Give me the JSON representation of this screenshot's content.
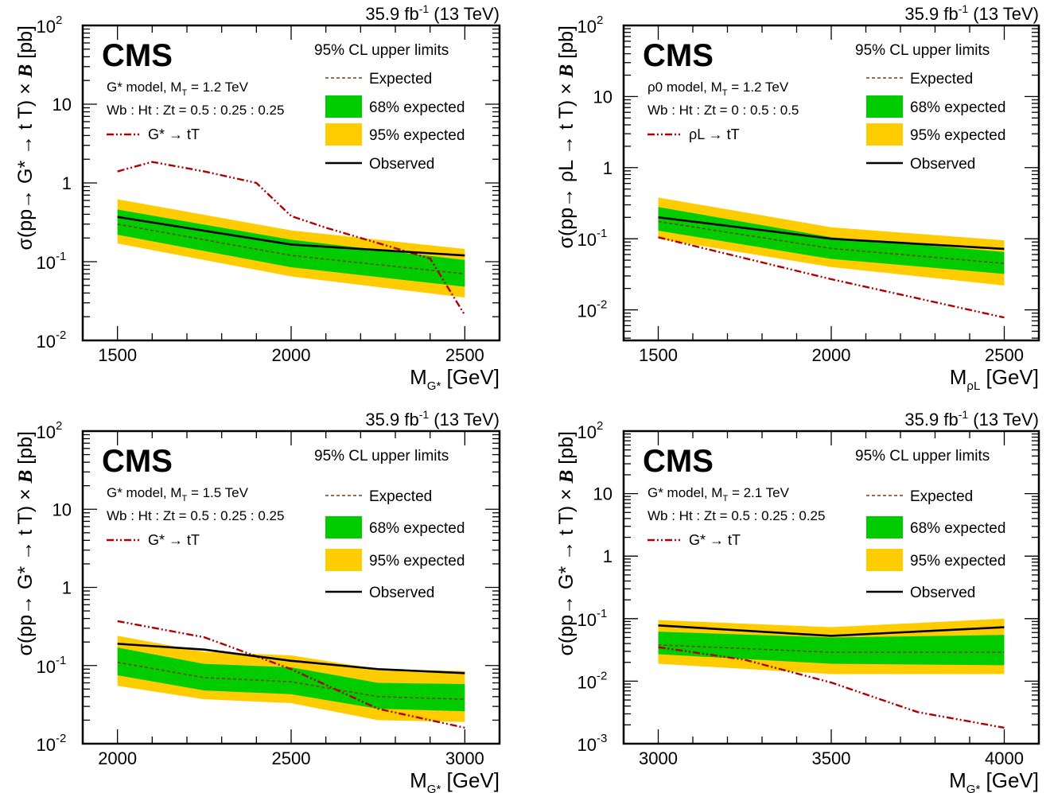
{
  "chart_data": [
    {
      "type": "line",
      "lumi": "35.9 fb",
      "lumi_sup": "-1",
      "energy": " (13 TeV)",
      "experiment": "CMS",
      "legend_title": "95% CL upper limits",
      "legend_entries": [
        "Expected",
        "68% expected",
        "95% expected",
        "Observed"
      ],
      "model_label": "G* model, M",
      "model_sub": "T",
      "model_mass": " = 1.2 TeV",
      "br_label": "Wb : Ht : Zt = 0.5 : 0.25 : 0.25",
      "theory_label": "G* → tT",
      "ylabel": "σ(pp→ G* → t T) ×",
      "ylabel_b": "B",
      "ylabel_unit": "[pb]",
      "xlabel": "M",
      "xlabel_sub": "G*",
      "xlabel_unit": "[GeV]",
      "xlim": [
        1400,
        2600
      ],
      "ylim": [
        0.01,
        100
      ],
      "yscale": "log",
      "xticks": [
        1500,
        2000,
        2500
      ],
      "yticks": [
        "10^-2",
        "10^-1",
        "1",
        "10",
        "10^2"
      ],
      "x": [
        1500,
        2000,
        2500
      ],
      "observed": [
        0.37,
        0.165,
        0.12
      ],
      "expected": [
        0.3,
        0.12,
        0.07
      ],
      "band68_low": [
        0.22,
        0.085,
        0.048
      ],
      "band68_high": [
        0.46,
        0.19,
        0.105
      ],
      "band95_low": [
        0.17,
        0.065,
        0.035
      ],
      "band95_high": [
        0.62,
        0.25,
        0.145
      ],
      "theory_x": [
        1500,
        1600,
        1750,
        1900,
        2000,
        2100,
        2400,
        2500
      ],
      "theory_y": [
        1.4,
        1.85,
        1.4,
        1.0,
        0.38,
        0.27,
        0.11,
        0.021
      ]
    },
    {
      "type": "line",
      "lumi": "35.9 fb",
      "lumi_sup": "-1",
      "energy": " (13 TeV)",
      "experiment": "CMS",
      "legend_title": "95% CL upper limits",
      "legend_entries": [
        "Expected",
        "68% expected",
        "95% expected",
        "Observed"
      ],
      "model_label": "ρ0 model, M",
      "model_sub": "T",
      "model_mass": " = 1.2 TeV",
      "br_label": "Wb : Ht : Zt = 0 : 0.5 : 0.5",
      "theory_label": "ρL → tT",
      "ylabel": "σ(pp→ ρL → t T) ×",
      "ylabel_b": "B",
      "ylabel_unit": "[pb]",
      "xlabel": "M",
      "xlabel_sub": "ρL",
      "xlabel_unit": "[GeV]",
      "xlim": [
        1400,
        2600
      ],
      "ylim": [
        0.005,
        100
      ],
      "yscale": "log",
      "xticks": [
        1500,
        2000,
        2500
      ],
      "yticks": [
        "10^-2",
        "10^-1",
        "1",
        "10",
        "10^2"
      ],
      "x": [
        1500,
        2000,
        2500
      ],
      "observed": [
        0.2,
        0.1,
        0.072
      ],
      "expected": [
        0.175,
        0.073,
        0.045
      ],
      "band68_low": [
        0.13,
        0.052,
        0.032
      ],
      "band68_high": [
        0.28,
        0.105,
        0.065
      ],
      "band95_low": [
        0.1,
        0.04,
        0.022
      ],
      "band95_high": [
        0.38,
        0.145,
        0.095
      ],
      "theory_x": [
        1500,
        2000,
        2500
      ],
      "theory_y": [
        0.105,
        0.027,
        0.0078
      ]
    },
    {
      "type": "line",
      "lumi": "35.9 fb",
      "lumi_sup": "-1",
      "energy": " (13 TeV)",
      "experiment": "CMS",
      "legend_title": "95% CL upper limits",
      "legend_entries": [
        "Expected",
        "68% expected",
        "95% expected",
        "Observed"
      ],
      "model_label": "G* model, M",
      "model_sub": "T",
      "model_mass": " = 1.5 TeV",
      "br_label": "Wb : Ht : Zt = 0.5 : 0.25 : 0.25",
      "theory_label": "G* → tT",
      "ylabel": "σ(pp→ G* → t T) ×",
      "ylabel_b": "B",
      "ylabel_unit": "[pb]",
      "xlabel": "M",
      "xlabel_sub": "G*",
      "xlabel_unit": "[GeV]",
      "xlim": [
        1900,
        3100
      ],
      "ylim": [
        0.01,
        100
      ],
      "yscale": "log",
      "xticks": [
        2000,
        2500,
        3000
      ],
      "yticks": [
        "10^-2",
        "10^-1",
        "1",
        "10",
        "10^2"
      ],
      "x": [
        2000,
        2250,
        2500,
        2750,
        3000
      ],
      "observed": [
        0.19,
        0.16,
        0.115,
        0.09,
        0.08
      ],
      "expected": [
        0.11,
        0.07,
        0.062,
        0.04,
        0.037
      ],
      "band68_low": [
        0.075,
        0.048,
        0.043,
        0.028,
        0.026
      ],
      "band68_high": [
        0.17,
        0.105,
        0.095,
        0.06,
        0.058
      ],
      "band95_low": [
        0.055,
        0.037,
        0.033,
        0.02,
        0.019
      ],
      "band95_high": [
        0.24,
        0.15,
        0.135,
        0.09,
        0.085
      ],
      "theory_x": [
        2000,
        2250,
        2500,
        2750,
        3000
      ],
      "theory_y": [
        0.37,
        0.23,
        0.09,
        0.028,
        0.016
      ]
    },
    {
      "type": "line",
      "lumi": "35.9 fb",
      "lumi_sup": "-1",
      "energy": " (13 TeV)",
      "experiment": "CMS",
      "legend_title": "95% CL upper limits",
      "legend_entries": [
        "Expected",
        "68% expected",
        "95% expected",
        "Observed"
      ],
      "model_label": "G* model, M",
      "model_sub": "T",
      "model_mass": " = 2.1 TeV",
      "br_label": "Wb : Ht : Zt = 0.5 : 0.25 : 0.25",
      "theory_label": "G* → tT",
      "ylabel": "σ(pp→ G* → t T) ×",
      "ylabel_b": "B",
      "ylabel_unit": "[pb]",
      "xlabel": "M",
      "xlabel_sub": "G*",
      "xlabel_unit": "[GeV]",
      "xlim": [
        2900,
        4100
      ],
      "ylim": [
        0.001,
        100
      ],
      "yscale": "log",
      "xticks": [
        3000,
        3500,
        4000
      ],
      "yticks": [
        "10^-3",
        "10^-2",
        "10^-1",
        "1",
        "10",
        "10^2"
      ],
      "x": [
        3000,
        3500,
        4000
      ],
      "observed": [
        0.078,
        0.053,
        0.073
      ],
      "expected": [
        0.038,
        0.029,
        0.029
      ],
      "band68_low": [
        0.027,
        0.019,
        0.018
      ],
      "band68_high": [
        0.062,
        0.05,
        0.055
      ],
      "band95_low": [
        0.019,
        0.013,
        0.013
      ],
      "band95_high": [
        0.095,
        0.073,
        0.1
      ],
      "theory_x": [
        3000,
        3250,
        3500,
        3750,
        4000
      ],
      "theory_y": [
        0.035,
        0.022,
        0.0095,
        0.0032,
        0.0018
      ]
    }
  ]
}
